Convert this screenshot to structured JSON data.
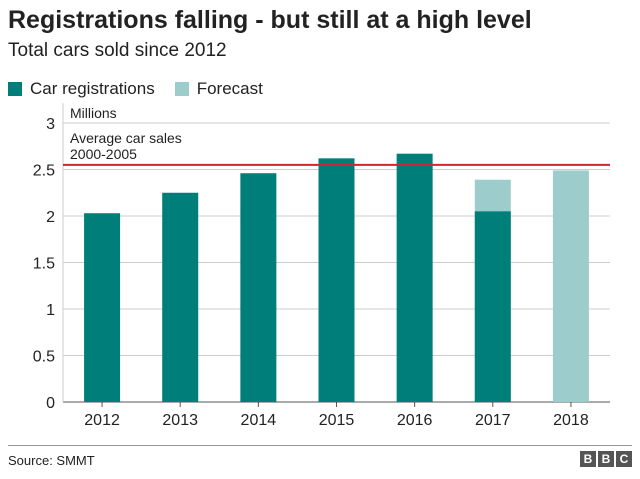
{
  "chart_data": {
    "type": "bar",
    "title": "Registrations falling - but still at a high level",
    "subtitle": "Total cars sold since 2012",
    "ylabel": "Millions",
    "categories": [
      "2012",
      "2013",
      "2014",
      "2015",
      "2016",
      "2017",
      "2018"
    ],
    "series": [
      {
        "name": "Car registrations",
        "color": "#007f7a",
        "values": [
          2.03,
          2.25,
          2.46,
          2.62,
          2.67,
          2.05,
          null
        ]
      },
      {
        "name": "Forecast",
        "color": "#9ccccc",
        "values": [
          null,
          null,
          null,
          null,
          null,
          2.39,
          2.49
        ]
      }
    ],
    "ylim": [
      0,
      3
    ],
    "yticks": [
      "0",
      "0.5",
      "1",
      "1.5",
      "2",
      "2.5",
      "3"
    ],
    "grid": true,
    "legend": "top-left",
    "reference_line": {
      "label_line1": "Average car sales",
      "label_line2": "2000-2005",
      "value": 2.55,
      "color": "#d0262d"
    }
  },
  "footer": {
    "source": "Source: SMMT",
    "logo": [
      "B",
      "B",
      "C"
    ]
  }
}
